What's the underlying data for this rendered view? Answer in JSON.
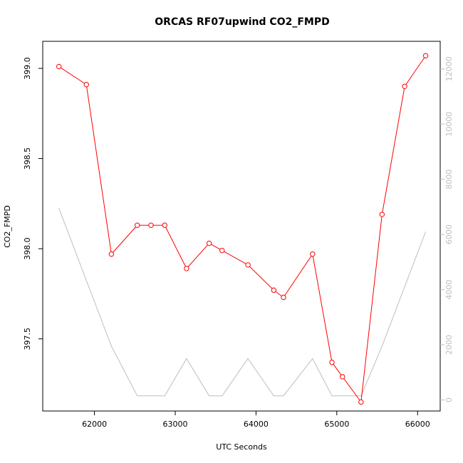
{
  "chart_data": {
    "type": "line",
    "title": "ORCAS RF07upwind CO2_FMPD",
    "xlabel": "UTC Seconds",
    "ylabel": "CO2_FMPD",
    "xlim": [
      61360,
      66280
    ],
    "ylim": [
      397.1,
      399.15
    ],
    "y2lim": [
      -400,
      13000
    ],
    "x_ticks": [
      62000,
      63000,
      64000,
      65000,
      66000
    ],
    "y_ticks": [
      397.5,
      398.0,
      398.5,
      399.0
    ],
    "y2_ticks": [
      0,
      2000,
      4000,
      6000,
      8000,
      10000,
      12000
    ],
    "x_tick_labels": [
      "62000",
      "63000",
      "64000",
      "65000",
      "66000"
    ],
    "y_tick_labels": [
      "397.5",
      "398.0",
      "398.5",
      "399.0"
    ],
    "y2_tick_labels": [
      "0",
      "2000",
      "4000",
      "6000",
      "8000",
      "10000",
      "12000"
    ],
    "grid": false,
    "series": [
      {
        "axis": "left",
        "color": "#ff0000",
        "markers": "open-circle",
        "x": [
          61560,
          61900,
          62210,
          62530,
          62700,
          62870,
          63140,
          63420,
          63580,
          63900,
          64220,
          64340,
          64700,
          64940,
          65070,
          65300,
          65560,
          65840,
          66100
        ],
        "values": [
          399.01,
          398.91,
          397.97,
          398.13,
          398.13,
          398.13,
          397.89,
          398.03,
          397.99,
          397.91,
          397.77,
          397.73,
          397.97,
          397.37,
          397.29,
          397.15,
          398.19,
          398.9,
          399.07
        ]
      },
      {
        "axis": "right",
        "color": "#bebebe",
        "markers": "none",
        "x": [
          61560,
          62210,
          62530,
          62870,
          63140,
          63420,
          63580,
          63900,
          64220,
          64340,
          64700,
          64940,
          65300,
          65560,
          66100
        ],
        "values": [
          6950,
          1950,
          150,
          150,
          1500,
          150,
          150,
          1500,
          150,
          150,
          1500,
          150,
          150,
          1950,
          6100
        ]
      }
    ]
  }
}
